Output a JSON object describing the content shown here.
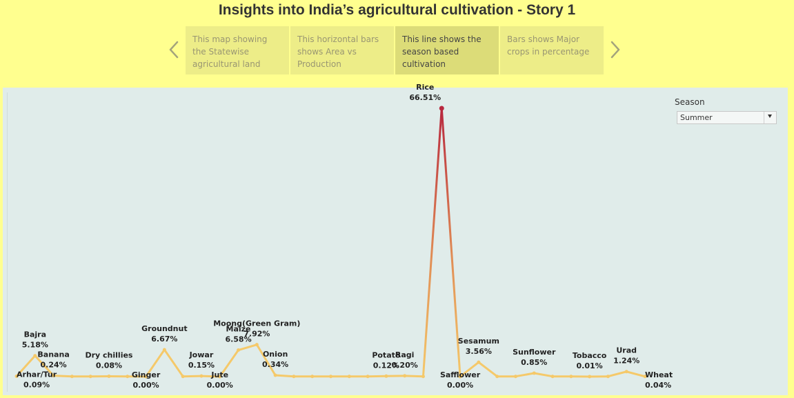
{
  "story": {
    "title": "Insights into India’s agricultural cultivation - Story 1",
    "captions": [
      {
        "text": "This map showing the Statewise agricultural land",
        "active": false
      },
      {
        "text": "This horizontal bars shows Area vs Production",
        "active": false
      },
      {
        "text": "This line shows the season based cultivation",
        "active": true
      },
      {
        "text": "Bars shows Major crops in percentage",
        "active": false
      }
    ],
    "prev_icon": "chevron-left-icon",
    "next_icon": "chevron-right-icon"
  },
  "filter": {
    "label": "Season",
    "value": "Summer"
  },
  "colors": {
    "background": "#ffff8f",
    "panel": "#e0ecea",
    "line_low": "#f5c96a",
    "line_high": "#b8283e"
  },
  "chart_data": {
    "type": "line",
    "title": "",
    "xlabel": "",
    "ylabel": "",
    "ylim": [
      0,
      70
    ],
    "grid": false,
    "points": [
      {
        "y": 0.09,
        "label": "Arhar/Tur",
        "value_label": "0.09%",
        "pos": "below"
      },
      {
        "y": 5.18,
        "label": "Bajra",
        "value_label": "5.18%",
        "pos": "above"
      },
      {
        "y": 0.24,
        "label": "Banana",
        "value_label": "0.24%",
        "pos": "above"
      },
      {
        "y": 0.05,
        "label": null,
        "value_label": null,
        "pos": null
      },
      {
        "y": 0.05,
        "label": null,
        "value_label": null,
        "pos": null
      },
      {
        "y": 0.08,
        "label": "Dry chillies",
        "value_label": "0.08%",
        "pos": "above"
      },
      {
        "y": 0.05,
        "label": null,
        "value_label": null,
        "pos": null
      },
      {
        "y": 0.0,
        "label": "Ginger",
        "value_label": "0.00%",
        "pos": "below"
      },
      {
        "y": 6.67,
        "label": "Groundnut",
        "value_label": "6.67%",
        "pos": "above"
      },
      {
        "y": 0.05,
        "label": null,
        "value_label": null,
        "pos": null
      },
      {
        "y": 0.15,
        "label": "Jowar",
        "value_label": "0.15%",
        "pos": "above"
      },
      {
        "y": 0.0,
        "label": "Jute",
        "value_label": "0.00%",
        "pos": "below"
      },
      {
        "y": 6.58,
        "label": "Maize",
        "value_label": "6.58%",
        "pos": "above"
      },
      {
        "y": 7.92,
        "label": "Moong(Green Gram)",
        "value_label": "7.92%",
        "pos": "above"
      },
      {
        "y": 0.34,
        "label": "Onion",
        "value_label": "0.34%",
        "pos": "above"
      },
      {
        "y": 0.05,
        "label": null,
        "value_label": null,
        "pos": null
      },
      {
        "y": 0.05,
        "label": null,
        "value_label": null,
        "pos": null
      },
      {
        "y": 0.05,
        "label": null,
        "value_label": null,
        "pos": null
      },
      {
        "y": 0.05,
        "label": null,
        "value_label": null,
        "pos": null
      },
      {
        "y": 0.05,
        "label": null,
        "value_label": null,
        "pos": null
      },
      {
        "y": 0.12,
        "label": "Potato",
        "value_label": "0.12%",
        "pos": "above"
      },
      {
        "y": 0.2,
        "label": "Ragi",
        "value_label": "0.20%",
        "pos": "above"
      },
      {
        "y": 0.05,
        "label": null,
        "value_label": null,
        "pos": null
      },
      {
        "y": 66.51,
        "label": "Rice",
        "value_label": "66.51%",
        "pos": "above"
      },
      {
        "y": 0.0,
        "label": "Safflower",
        "value_label": "0.00%",
        "pos": "below"
      },
      {
        "y": 3.56,
        "label": "Sesamum",
        "value_label": "3.56%",
        "pos": "above"
      },
      {
        "y": 0.05,
        "label": null,
        "value_label": null,
        "pos": null
      },
      {
        "y": 0.05,
        "label": null,
        "value_label": null,
        "pos": null
      },
      {
        "y": 0.85,
        "label": "Sunflower",
        "value_label": "0.85%",
        "pos": "above"
      },
      {
        "y": 0.05,
        "label": null,
        "value_label": null,
        "pos": null
      },
      {
        "y": 0.05,
        "label": null,
        "value_label": null,
        "pos": null
      },
      {
        "y": 0.01,
        "label": "Tobacco",
        "value_label": "0.01%",
        "pos": "above"
      },
      {
        "y": 0.05,
        "label": null,
        "value_label": null,
        "pos": null
      },
      {
        "y": 1.24,
        "label": "Urad",
        "value_label": "1.24%",
        "pos": "above"
      },
      {
        "y": 0.04,
        "label": "Wheat",
        "value_label": "0.04%",
        "pos": "below"
      }
    ]
  }
}
